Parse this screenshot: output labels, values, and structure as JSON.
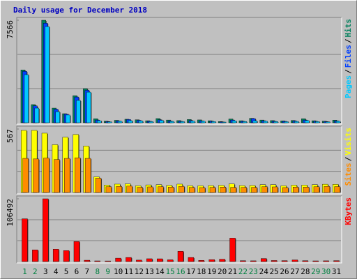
{
  "chart_data": {
    "type": "bar",
    "title": "Daily usage for December 2018",
    "categories": [
      "1",
      "2",
      "3",
      "4",
      "5",
      "6",
      "7",
      "8",
      "9",
      "10",
      "11",
      "12",
      "13",
      "14",
      "15",
      "16",
      "17",
      "18",
      "19",
      "20",
      "21",
      "22",
      "23",
      "24",
      "25",
      "26",
      "27",
      "28",
      "29",
      "30",
      "31"
    ],
    "category_colors": [
      "#008040",
      "#008040",
      "#000000",
      "#000000",
      "#000000",
      "#000000",
      "#000000",
      "#008040",
      "#008040",
      "#000000",
      "#000000",
      "#000000",
      "#000000",
      "#000000",
      "#008040",
      "#008040",
      "#000000",
      "#000000",
      "#000000",
      "#000000",
      "#000000",
      "#008040",
      "#008040",
      "#000000",
      "#000000",
      "#000000",
      "#000000",
      "#000000",
      "#008040",
      "#008040",
      "#000000"
    ],
    "legend_separator": "/",
    "panels": [
      {
        "ylim": [
          0,
          7566
        ],
        "yticks": [
          7566
        ],
        "series": [
          {
            "name": "Hits",
            "color": "#00805C",
            "values": [
              3900,
              1340,
              7566,
              1080,
              670,
              2000,
              2520,
              300,
              120,
              180,
              260,
              220,
              150,
              310,
              200,
              160,
              240,
              210,
              150,
              90,
              280,
              150,
              330,
              200,
              160,
              140,
              170,
              300,
              150,
              120,
              190
            ]
          },
          {
            "name": "Files",
            "color": "#0040FF",
            "values": [
              3800,
              1250,
              7350,
              1000,
              640,
              1900,
              2400,
              200,
              90,
              140,
              240,
              180,
              120,
              220,
              130,
              110,
              160,
              140,
              110,
              60,
              200,
              110,
              310,
              150,
              120,
              110,
              130,
              200,
              110,
              90,
              140
            ]
          },
          {
            "name": "Pages",
            "color": "#00C8FF",
            "values": [
              3550,
              1080,
              7100,
              820,
              570,
              1650,
              2260,
              150,
              70,
              110,
              150,
              130,
              90,
              160,
              100,
              90,
              120,
              110,
              90,
              50,
              140,
              90,
              150,
              110,
              90,
              80,
              100,
              160,
              90,
              70,
              110
            ]
          }
        ]
      },
      {
        "ylim": [
          0,
          567
        ],
        "yticks": [
          567
        ],
        "series": [
          {
            "name": "Visits",
            "color": "#FFFF00",
            "values": [
              555,
              555,
              530,
              427,
              494,
              518,
              415,
              140,
              67,
              75,
              77,
              60,
              68,
              70,
              64,
              75,
              60,
              60,
              62,
              64,
              77,
              62,
              63,
              70,
              70,
              60,
              66,
              67,
              70,
              74,
              73
            ]
          },
          {
            "name": "Sites",
            "color": "#FF8C00",
            "values": [
              305,
              300,
              308,
              295,
              305,
              310,
              305,
              128,
              52,
              55,
              57,
              46,
              50,
              52,
              48,
              55,
              45,
              44,
              46,
              48,
              46,
              45,
              46,
              52,
              50,
              44,
              48,
              48,
              52,
              55,
              53
            ]
          }
        ]
      },
      {
        "ylim": [
          0,
          106492
        ],
        "yticks": [
          106492
        ],
        "series": [
          {
            "name": "KBytes",
            "color": "#FF0000",
            "values": [
              72600,
              19900,
              106492,
              21000,
              18700,
              34000,
              2300,
              1200,
              1100,
              5800,
              7000,
              2500,
              4800,
              4700,
              3000,
              17500,
              7000,
              2000,
              3200,
              4000,
              39800,
              1500,
              1300,
              5200,
              1800,
              1600,
              2800,
              1500,
              1200,
              1300,
              1600
            ]
          }
        ]
      }
    ]
  }
}
